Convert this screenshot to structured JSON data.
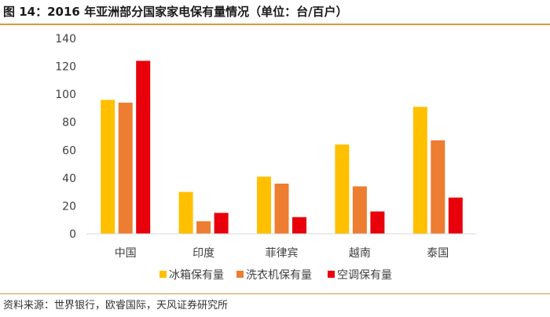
{
  "title": "图 14：2016 年亚洲部分国家家电保有量情况（单位：台/百户）",
  "source": "资料来源：世界银行，欧睿国际，天风证券研究所",
  "colors": {
    "rule": "#d49a3c",
    "axis": "#d9d9d9",
    "tick_text": "#404040"
  },
  "chart_data": {
    "type": "bar",
    "title": "",
    "xlabel": "",
    "ylabel": "",
    "ylim": [
      0,
      140
    ],
    "yticks": [
      0,
      20,
      40,
      60,
      80,
      100,
      120,
      140
    ],
    "grid": false,
    "legend_position": "bottom",
    "categories": [
      "中国",
      "印度",
      "菲律宾",
      "越南",
      "泰国"
    ],
    "series": [
      {
        "name": "冰箱保有量",
        "color": "#ffc000",
        "values": [
          96,
          30,
          41,
          64,
          91
        ]
      },
      {
        "name": "洗衣机保有量",
        "color": "#ed7d31",
        "values": [
          94,
          9,
          36,
          34,
          67
        ]
      },
      {
        "name": "空调保有量",
        "color": "#e8000b",
        "values": [
          124,
          15,
          12,
          16,
          26
        ]
      }
    ]
  }
}
